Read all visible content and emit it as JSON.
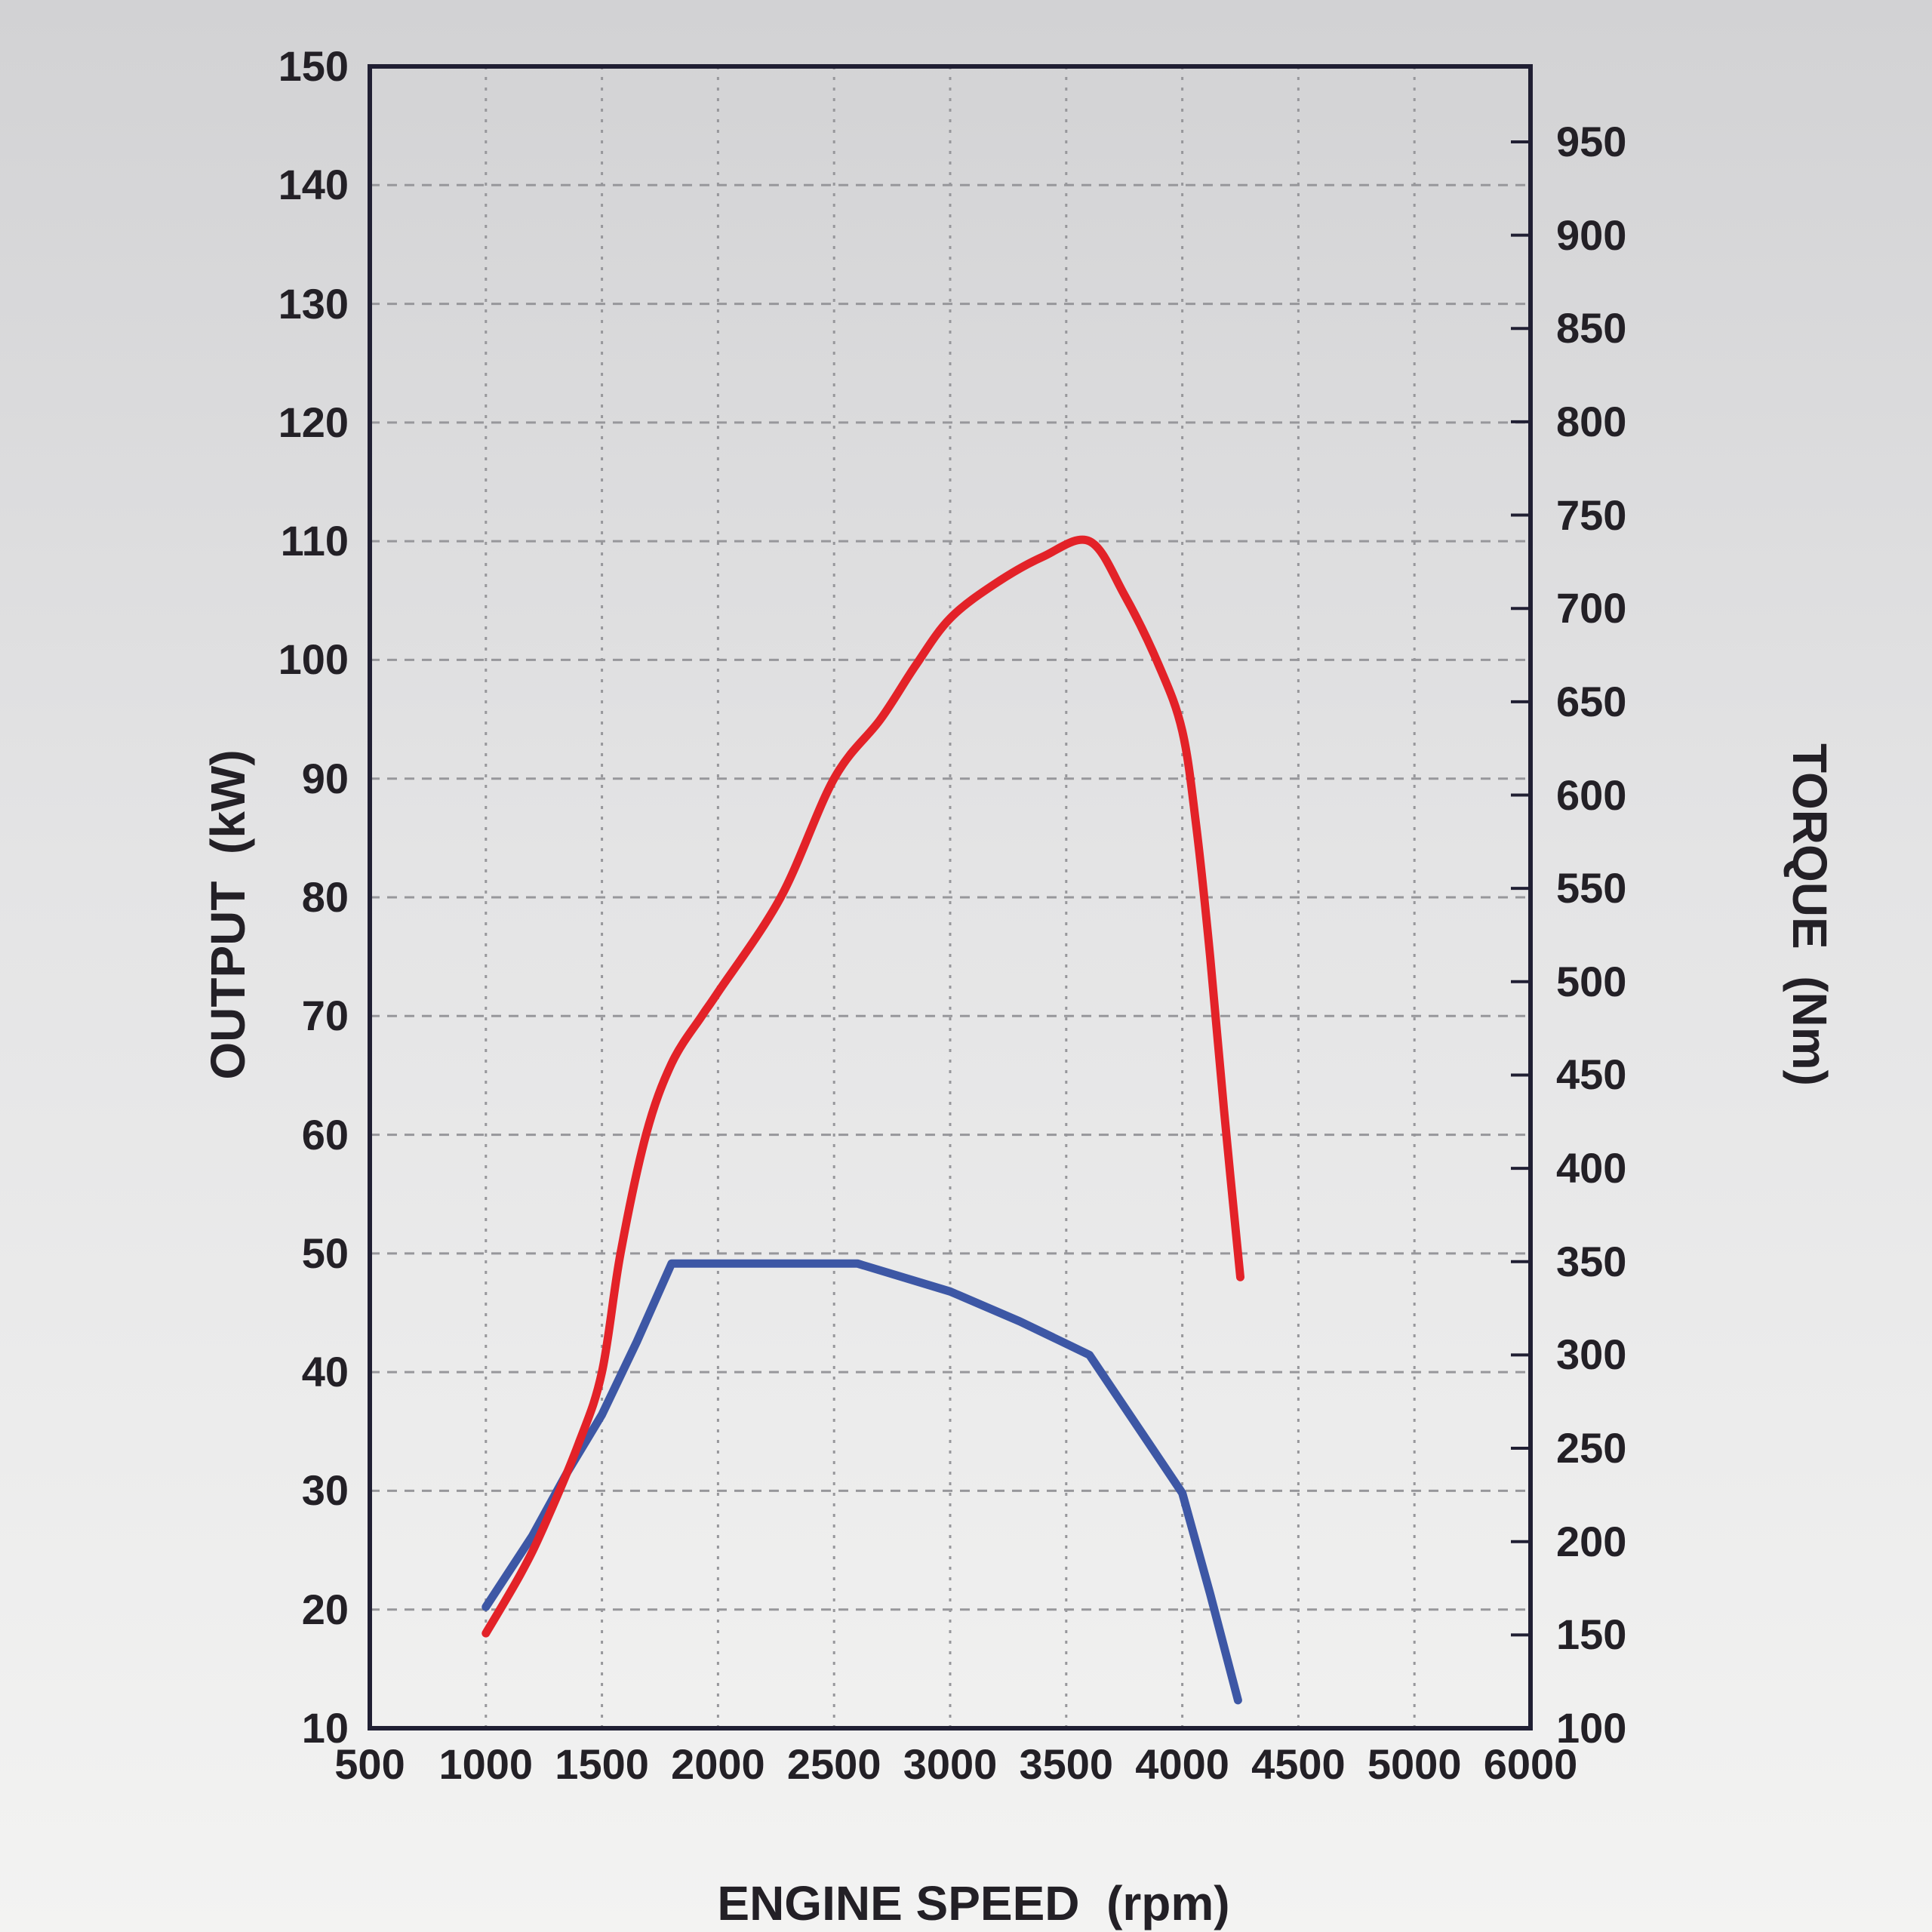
{
  "figure": {
    "background_top": "#d2d2d4",
    "background_bottom": "#f3f3f2",
    "border_color": "#201f33",
    "grid_color": "#97979b",
    "text_color": "#232026"
  },
  "chart_data": {
    "type": "line",
    "title": "",
    "xlabel": "ENGINE SPEED  (rpm)",
    "x_tick_labels": [
      "500",
      "1000",
      "1500",
      "2000",
      "2500",
      "3000",
      "3500",
      "4000",
      "4500",
      "5000",
      "6000"
    ],
    "x_tick_note": "11 labels evenly spaced across axis; original graphic skips 5500",
    "grid": true,
    "legend_position": "none",
    "left_axis": {
      "label": "OUTPUT  (kW)",
      "min": 10,
      "max": 150,
      "tick_step": 10,
      "tick_labels": [
        "150",
        "140",
        "130",
        "120",
        "110",
        "100",
        "90",
        "80",
        "70",
        "60",
        "50",
        "40",
        "30",
        "20",
        "10"
      ]
    },
    "right_axis": {
      "label": "TORQUE  (Nm)",
      "tick_step": 50,
      "bottom_value": 100,
      "tick_labels": [
        "950",
        "900",
        "850",
        "800",
        "750",
        "700",
        "650",
        "600",
        "550",
        "500",
        "450",
        "400",
        "350",
        "300",
        "250",
        "200",
        "150",
        "100"
      ]
    },
    "series": [
      {
        "name": "torque",
        "axis": "right",
        "color": "#3d57a5",
        "unit": "Nm",
        "style": "polyline",
        "points": [
          [
            1000,
            165
          ],
          [
            1200,
            203
          ],
          [
            1350,
            237
          ],
          [
            1500,
            268
          ],
          [
            1650,
            307
          ],
          [
            1800,
            349
          ],
          [
            2000,
            349
          ],
          [
            2300,
            349
          ],
          [
            2600,
            349
          ],
          [
            3000,
            334
          ],
          [
            3300,
            318
          ],
          [
            3600,
            300
          ],
          [
            3800,
            263
          ],
          [
            4000,
            226
          ],
          [
            4120,
            172
          ],
          [
            4240,
            115
          ]
        ]
      },
      {
        "name": "output",
        "axis": "left",
        "color": "#e32228",
        "unit": "kW",
        "style": "smooth",
        "points": [
          [
            1000,
            18
          ],
          [
            1150,
            23
          ],
          [
            1250,
            27
          ],
          [
            1400,
            34
          ],
          [
            1500,
            40
          ],
          [
            1580,
            50
          ],
          [
            1690,
            60
          ],
          [
            1800,
            66
          ],
          [
            1930,
            70
          ],
          [
            2000,
            72
          ],
          [
            2270,
            80
          ],
          [
            2500,
            90
          ],
          [
            2700,
            95
          ],
          [
            2850,
            99.5
          ],
          [
            3000,
            103.5
          ],
          [
            3200,
            106.5
          ],
          [
            3400,
            108.7
          ],
          [
            3600,
            110
          ],
          [
            3750,
            105.5
          ],
          [
            3900,
            99.5
          ],
          [
            4000,
            94
          ],
          [
            4060,
            86
          ],
          [
            4120,
            75
          ],
          [
            4180,
            62
          ],
          [
            4250,
            48
          ]
        ]
      }
    ],
    "observed_extremes": {
      "output_peak": [
        3600,
        110
      ],
      "torque_plateau_value": 349,
      "torque_plateau_range_rpm": [
        1800,
        2600
      ]
    }
  }
}
